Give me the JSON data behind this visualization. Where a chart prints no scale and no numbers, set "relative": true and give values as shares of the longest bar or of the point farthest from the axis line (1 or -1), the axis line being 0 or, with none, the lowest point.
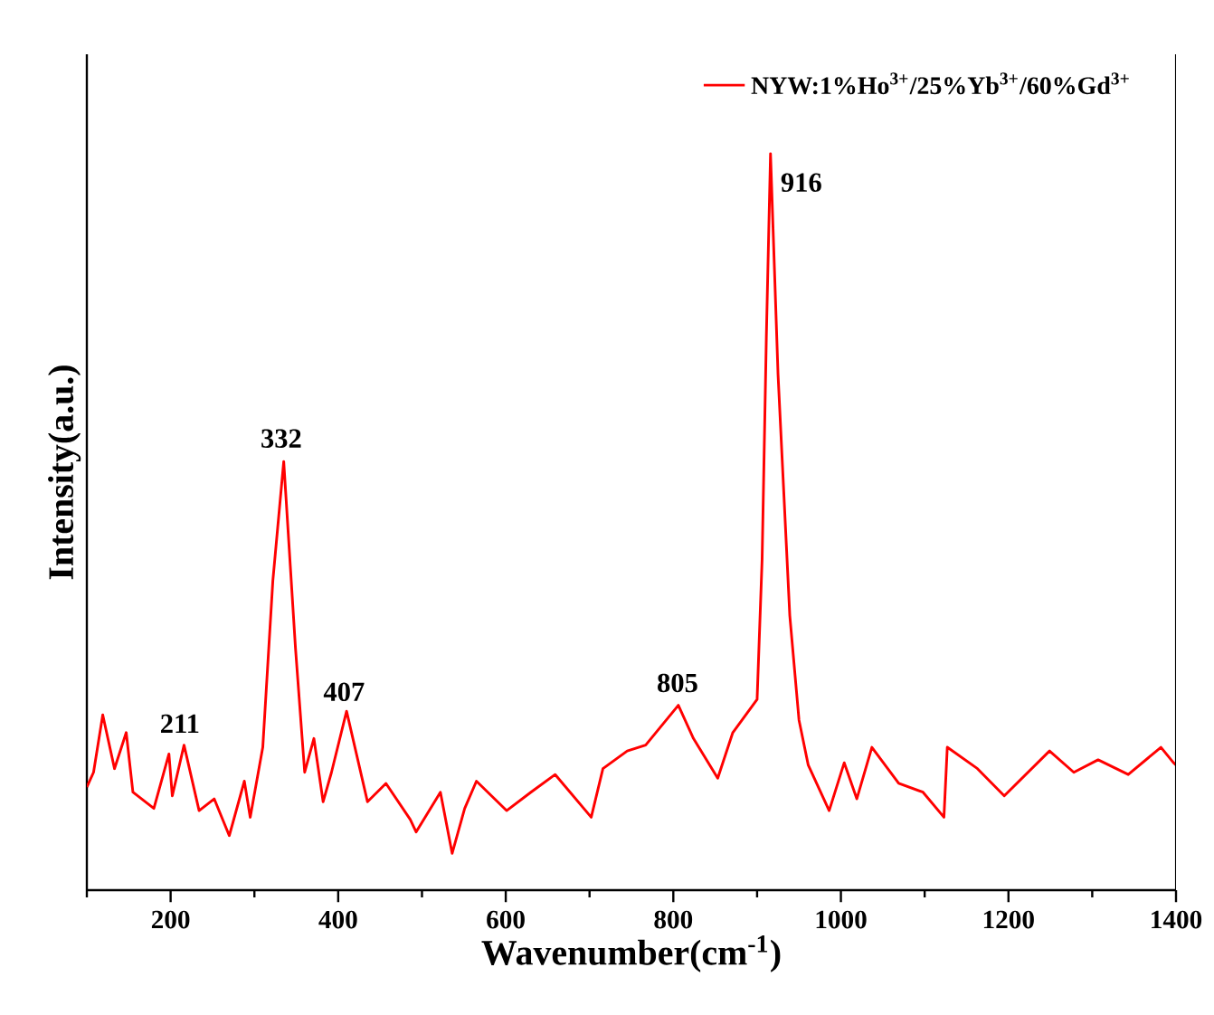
{
  "chart_data": {
    "type": "line",
    "xlabel": "Wavenumber(cm$^{-1}$)",
    "ylabel": "Intensity(a.u.)",
    "relative": true,
    "legend": "top right",
    "marker": "none",
    "line_style": "solid",
    "xlim": [
      100,
      1400
    ],
    "xticks": [
      {
        "value": 100,
        "label": null
      },
      200,
      {
        "value": 300,
        "label": null
      },
      400,
      {
        "value": 500,
        "label": null
      },
      600,
      {
        "value": 700,
        "label": null
      },
      800,
      {
        "value": 900,
        "label": null
      },
      1000,
      {
        "value": 1100,
        "label": null
      },
      1200,
      {
        "value": 1300,
        "label": null
      },
      1400
    ],
    "annotations": [
      {
        "text": "211",
        "x": 211,
        "y": 0.2
      },
      {
        "text": "332",
        "x": 332,
        "y": 0.587
      },
      {
        "text": "407",
        "x": 407,
        "y": 0.243
      },
      {
        "text": "805",
        "x": 805,
        "y": 0.255
      },
      {
        "text": "916",
        "x": 916,
        "y": 1.0
      }
    ],
    "series": [
      {
        "name": "NYW:1%Ho$^{3+}$/25%Yb$^{3+}$/60%Gd$^{3+}$",
        "color": "#ff0000",
        "x": [
          100,
          108,
          119,
          133,
          147,
          155,
          180,
          198,
          202,
          216,
          234,
          252,
          270,
          288,
          295,
          310,
          322,
          335,
          349,
          360,
          371,
          382,
          392,
          410,
          435,
          457,
          486,
          493,
          522,
          536,
          551,
          565,
          601,
          630,
          659,
          702,
          716,
          745,
          767,
          806,
          824,
          853,
          871,
          900,
          906,
          911,
          916,
          925,
          939,
          950,
          961,
          986,
          1004,
          1019,
          1037,
          1069,
          1098,
          1123,
          1127,
          1163,
          1195,
          1249,
          1278,
          1307,
          1343,
          1382,
          1397,
          1400
        ],
        "values": [
          0.14,
          0.16,
          0.238,
          0.165,
          0.214,
          0.133,
          0.111,
          0.185,
          0.128,
          0.197,
          0.108,
          0.124,
          0.074,
          0.148,
          0.099,
          0.194,
          0.42,
          0.582,
          0.329,
          0.16,
          0.206,
          0.12,
          0.16,
          0.243,
          0.12,
          0.145,
          0.096,
          0.079,
          0.133,
          0.05,
          0.111,
          0.148,
          0.108,
          0.133,
          0.157,
          0.099,
          0.165,
          0.189,
          0.197,
          0.251,
          0.206,
          0.152,
          0.214,
          0.259,
          0.45,
          0.75,
          1.0,
          0.7,
          0.373,
          0.231,
          0.17,
          0.108,
          0.173,
          0.124,
          0.194,
          0.145,
          0.133,
          0.099,
          0.194,
          0.165,
          0.128,
          0.189,
          0.16,
          0.177,
          0.157,
          0.194,
          0.173,
          0.17
        ]
      }
    ]
  }
}
